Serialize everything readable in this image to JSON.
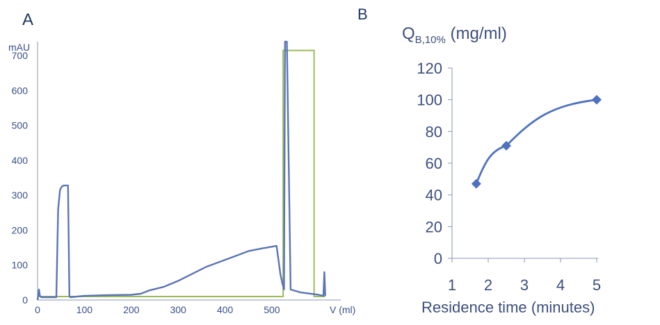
{
  "panels": {
    "a_label": "A",
    "b_label": "B"
  },
  "chart_data": [
    {
      "type": "line",
      "ylabel": "mAU",
      "xlabel": "V (ml)",
      "xlim": [
        0,
        650
      ],
      "ylim": [
        0,
        740
      ],
      "x_ticks": [
        "0",
        "100",
        "200",
        "300",
        "400",
        "500"
      ],
      "y_ticks": [
        "0",
        "100",
        "200",
        "300",
        "400",
        "500",
        "600",
        "700"
      ],
      "colors": {
        "uv": "#5b74b4",
        "gradient": "#9bbb59",
        "axis": "#8b95b5"
      },
      "series": [
        {
          "x": [
            0,
            3,
            5,
            8,
            35,
            40,
            44,
            48,
            52,
            56,
            60,
            65,
            68,
            70,
            100,
            150,
            200,
            220,
            240,
            270,
            300,
            330,
            360,
            390,
            420,
            450,
            480,
            510,
            518,
            522,
            526,
            528,
            532,
            540,
            560,
            600,
            610,
            612,
            614
          ],
          "y": [
            0,
            30,
            12,
            8,
            8,
            8,
            260,
            315,
            325,
            328,
            328,
            328,
            10,
            8,
            12,
            14,
            15,
            18,
            28,
            38,
            55,
            75,
            95,
            110,
            125,
            140,
            148,
            155,
            75,
            50,
            30,
            760,
            760,
            30,
            22,
            15,
            12,
            80,
            12
          ]
        },
        {
          "x": [
            0,
            524,
            524,
            590,
            590,
            614
          ],
          "y": [
            10,
            10,
            715,
            715,
            10,
            10
          ]
        }
      ]
    },
    {
      "type": "line",
      "ylabel_main": "Q",
      "ylabel_sub": "B,10%",
      "ylabel_unit": " (mg/ml)",
      "xlabel": "Residence time (minutes)",
      "xlim": [
        1,
        5
      ],
      "ylim": [
        0,
        120
      ],
      "x_ticks": [
        "1",
        "2",
        "3",
        "4",
        "5"
      ],
      "y_ticks": [
        "0",
        "20",
        "40",
        "60",
        "80",
        "100",
        "120"
      ],
      "colors": {
        "line": "#4f72be",
        "axis": "#8b95b5"
      },
      "series": [
        {
          "x": [
            1.67,
            2.5,
            5
          ],
          "y": [
            47,
            71,
            100
          ]
        }
      ]
    }
  ]
}
